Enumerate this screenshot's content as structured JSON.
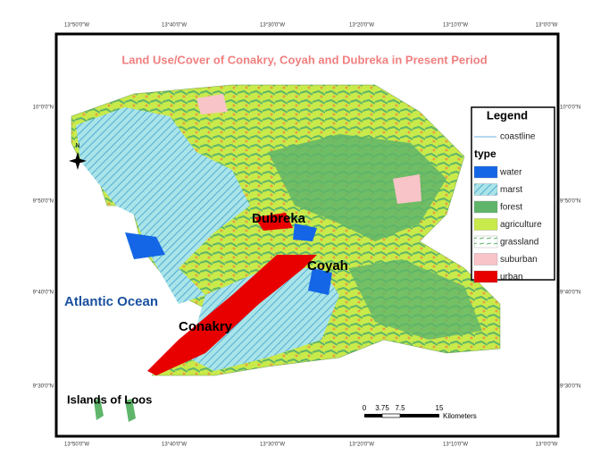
{
  "title": "Land Use/Cover of Conakry, Coyah and Dubreka in Present Period",
  "graticule": {
    "longitudes": [
      "13°50'0\"W",
      "13°40'0\"W",
      "13°30'0\"W",
      "13°20'0\"W",
      "13°10'0\"W",
      "13°0'0\"W"
    ],
    "latitudes": [
      "10°0'0\"N",
      "9°50'0\"N",
      "9°40'0\"N",
      "9°30'0\"N"
    ]
  },
  "places": {
    "dubreka": "Dubreka",
    "coyah": "Coyah",
    "conakry": "Conakry",
    "ocean": "Atlantic Ocean",
    "islands": "Islands of Loos"
  },
  "legend": {
    "title": "Legend",
    "coastline": "coastline",
    "type_heading": "type",
    "classes": [
      {
        "name": "water",
        "color": "#1466e6"
      },
      {
        "name": "marst",
        "color": "#a8e4e8",
        "pattern": "hatch"
      },
      {
        "name": "forest",
        "color": "#5fb56a"
      },
      {
        "name": "agriculture",
        "color": "#c8ea4a"
      },
      {
        "name": "grassland",
        "color": "#ffffff",
        "pattern": "dash"
      },
      {
        "name": "suburban",
        "color": "#f8c4c8"
      },
      {
        "name": "urban",
        "color": "#e80000"
      }
    ]
  },
  "scale_bar": {
    "ticks": [
      "0",
      "3.75",
      "7.5",
      "15"
    ],
    "unit": "Kilometers"
  },
  "north": "N"
}
